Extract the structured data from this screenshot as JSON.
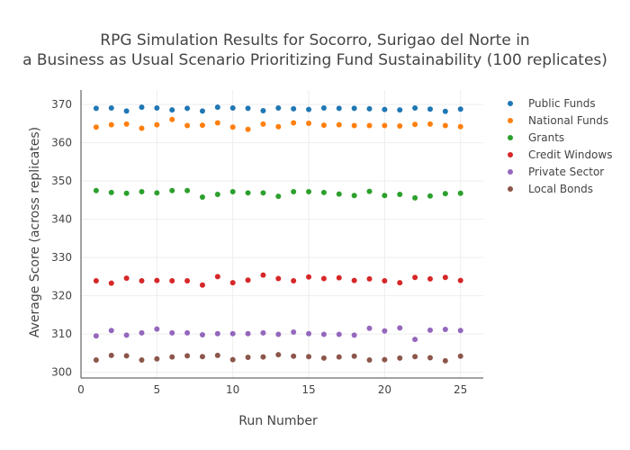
{
  "chart_data": {
    "type": "scatter",
    "title_line1": "RPG Simulation Results for Socorro, Surigao del Norte in",
    "title_line2": "a Business as Usual Scenario Prioritizing Fund Sustainability (100 replicates)",
    "xlabel": "Run Number",
    "ylabel": "Average Score (across replicates)",
    "xlim": [
      0,
      26.5
    ],
    "ylim": [
      298.5,
      373.8
    ],
    "xticks": [
      0,
      5,
      10,
      15,
      20,
      25
    ],
    "yticks": [
      300,
      310,
      320,
      330,
      340,
      350,
      360,
      370
    ],
    "grid": true,
    "legend_position": "top-right",
    "x": [
      1,
      2,
      3,
      4,
      5,
      6,
      7,
      8,
      9,
      10,
      11,
      12,
      13,
      14,
      15,
      16,
      17,
      18,
      19,
      20,
      21,
      22,
      23,
      24,
      25
    ],
    "series": [
      {
        "name": "Public Funds",
        "color": "#1f77b4",
        "values": [
          369.0,
          369.1,
          368.3,
          369.3,
          369.1,
          368.6,
          369.0,
          368.3,
          369.3,
          369.1,
          369.0,
          368.4,
          369.1,
          368.9,
          368.7,
          369.1,
          369.0,
          369.0,
          368.9,
          368.7,
          368.6,
          369.1,
          368.8,
          368.2,
          368.8
        ]
      },
      {
        "name": "National Funds",
        "color": "#ff7f0e",
        "values": [
          364.1,
          364.7,
          364.9,
          363.8,
          364.7,
          366.1,
          364.5,
          364.6,
          365.2,
          364.1,
          363.5,
          364.9,
          364.2,
          365.2,
          365.1,
          364.6,
          364.7,
          364.5,
          364.5,
          364.5,
          364.4,
          364.8,
          364.9,
          364.5,
          364.2
        ]
      },
      {
        "name": "Grants",
        "color": "#2ca02c",
        "values": [
          347.5,
          347.0,
          346.8,
          347.2,
          346.9,
          347.5,
          347.5,
          345.8,
          346.5,
          347.2,
          346.9,
          346.9,
          346.0,
          347.2,
          347.2,
          347.0,
          346.6,
          346.2,
          347.3,
          346.2,
          346.5,
          345.6,
          346.1,
          346.7,
          346.8
        ]
      },
      {
        "name": "Credit Windows",
        "color": "#d62728",
        "values": [
          323.9,
          323.3,
          324.6,
          323.9,
          324.0,
          323.9,
          323.9,
          322.8,
          325.0,
          323.4,
          324.1,
          325.4,
          324.5,
          323.9,
          324.9,
          324.5,
          324.7,
          324.0,
          324.4,
          323.9,
          323.4,
          324.8,
          324.4,
          324.8,
          324.0
        ]
      },
      {
        "name": "Private Sector",
        "color": "#9467bd",
        "values": [
          309.5,
          310.9,
          309.7,
          310.3,
          311.3,
          310.3,
          310.3,
          309.8,
          310.1,
          310.1,
          310.1,
          310.3,
          309.9,
          310.5,
          310.1,
          309.9,
          309.9,
          309.7,
          311.5,
          310.8,
          311.6,
          308.6,
          311.0,
          311.2,
          310.9
        ]
      },
      {
        "name": "Local Bonds",
        "color": "#8c564b",
        "values": [
          303.2,
          304.4,
          304.3,
          303.2,
          303.5,
          304.0,
          304.3,
          304.1,
          304.4,
          303.3,
          303.9,
          304.0,
          304.6,
          304.2,
          304.1,
          303.7,
          304.0,
          304.2,
          303.2,
          303.3,
          303.7,
          304.1,
          303.8,
          303.0,
          304.2
        ]
      }
    ]
  }
}
